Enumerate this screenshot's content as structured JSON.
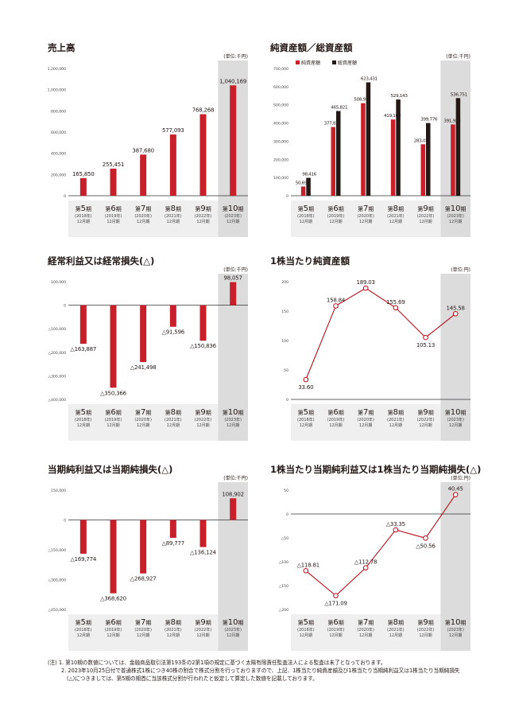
{
  "charts": [
    {
      "id": "sales",
      "title": "売上高",
      "unit": "(単位:千円)",
      "chart_data": {
        "type": "bar",
        "categories": [
          "第5期",
          "第6期",
          "第7期",
          "第8期",
          "第9期",
          "第10期"
        ],
        "category_years": [
          "(2018年)",
          "(2019年)",
          "(2020年)",
          "(2021年)",
          "(2022年)",
          "(2023年)"
        ],
        "category_month": "12月期",
        "series": [
          {
            "values": [
              165850,
              255451,
              387680,
              577093,
              768268,
              1040169
            ]
          }
        ],
        "value_labels": [
          "165,850",
          "255,451",
          "387,680",
          "577,093",
          "768,268",
          "1,040,169"
        ],
        "ylim": [
          0,
          1200000
        ],
        "yticks": [
          0,
          200000,
          400000,
          600000,
          800000,
          1000000,
          1200000
        ],
        "ytick_labels": [
          "0",
          "200,000",
          "400,000",
          "600,000",
          "800,000",
          "1,000,000",
          "1,200,000"
        ],
        "highlight_last": true
      }
    },
    {
      "id": "assets",
      "title": "純資産額／総資産額",
      "unit": "(単位:千円)",
      "chart_data": {
        "type": "bar",
        "categories": [
          "第5期",
          "第6期",
          "第7期",
          "第8期",
          "第9期",
          "第10期"
        ],
        "category_years": [
          "(2018年)",
          "(2019年)",
          "(2020年)",
          "(2021年)",
          "(2022年)",
          "(2023年)"
        ],
        "category_month": "12月期",
        "series": [
          {
            "name": "純資産額",
            "values": [
              50697,
              377821,
              508937,
              419160,
              283035,
              391938
            ],
            "labels": [
              "50,697",
              "377,821",
              "508,937",
              "419,160",
              "283,035",
              "391,938"
            ]
          },
          {
            "name": "総資産額",
            "values": [
              98416,
              465821,
              623431,
              529143,
              399776,
              536751
            ],
            "labels": [
              "98,416",
              "465,821",
              "623,431",
              "529,143",
              "399,776",
              "536,751"
            ]
          }
        ],
        "ylim": [
          0,
          700000
        ],
        "yticks": [
          0,
          100000,
          200000,
          300000,
          400000,
          500000,
          600000,
          700000
        ],
        "ytick_labels": [
          "0",
          "100,000",
          "200,000",
          "300,000",
          "400,000",
          "500,000",
          "600,000",
          "700,000"
        ],
        "legend": "top-left",
        "highlight_last": true
      }
    },
    {
      "id": "ordinary",
      "title": "経常利益又は経常損失(△)",
      "unit": "(単位:千円)",
      "chart_data": {
        "type": "bar",
        "categories": [
          "第5期",
          "第6期",
          "第7期",
          "第8期",
          "第9期",
          "第10期"
        ],
        "category_years": [
          "(2018年)",
          "(2019年)",
          "(2020年)",
          "(2021年)",
          "(2022年)",
          "(2023年)"
        ],
        "category_month": "12月期",
        "series": [
          {
            "values": [
              -163887,
              -350366,
              -241498,
              -91596,
              -150836,
              98057
            ]
          }
        ],
        "value_labels": [
          "△163,887",
          "△350,366",
          "△241,498",
          "△91,596",
          "△150,836",
          "98,057"
        ],
        "ylim": [
          -400000,
          100000
        ],
        "yticks": [
          100000,
          0,
          -100000,
          -200000,
          -300000,
          -400000
        ],
        "ytick_labels": [
          "100,000",
          "0",
          "△100,000",
          "△200,000",
          "△300,000",
          "△400,000"
        ],
        "highlight_last": true
      }
    },
    {
      "id": "bps",
      "title": "1株当たり純資産額",
      "unit": "(単位:円)",
      "chart_data": {
        "type": "line",
        "categories": [
          "第5期",
          "第6期",
          "第7期",
          "第8期",
          "第9期",
          "第10期"
        ],
        "category_years": [
          "(2018年)",
          "(2019年)",
          "(2020年)",
          "(2021年)",
          "(2022年)",
          "(2023年)"
        ],
        "category_month": "12月期",
        "series": [
          {
            "values": [
              33.6,
              158.84,
              189.03,
              155.69,
              105.13,
              145.58
            ]
          }
        ],
        "value_labels": [
          "33.60",
          "158.84",
          "189.03",
          "155.69",
          "105.13",
          "145.58"
        ],
        "ylim": [
          0,
          200
        ],
        "yticks": [
          0,
          50,
          100,
          150,
          200
        ],
        "ytick_labels": [
          "0",
          "50",
          "100",
          "150",
          "200"
        ],
        "highlight_last": true
      }
    },
    {
      "id": "net",
      "title": "当期純利益又は当期純損失(△)",
      "unit": "(単位:千円)",
      "chart_data": {
        "type": "bar",
        "categories": [
          "第5期",
          "第6期",
          "第7期",
          "第8期",
          "第9期",
          "第10期"
        ],
        "category_years": [
          "(2018年)",
          "(2019年)",
          "(2020年)",
          "(2021年)",
          "(2022年)",
          "(2023年)"
        ],
        "category_month": "12月期",
        "series": [
          {
            "values": [
              -169774,
              -368620,
              -268927,
              -89777,
              -136124,
              108902
            ]
          }
        ],
        "value_labels": [
          "△169,774",
          "△368,620",
          "△268,927",
          "△89,777",
          "△136,124",
          "108,902"
        ],
        "ylim": [
          -450000,
          150000
        ],
        "yticks": [
          150000,
          0,
          -150000,
          -300000,
          -450000
        ],
        "ytick_labels": [
          "150,000",
          "0",
          "△150,000",
          "△300,000",
          "△450,000"
        ],
        "highlight_last": true
      }
    },
    {
      "id": "eps",
      "title": "1株当たり当期純利益又は1株当たり当期純損失(△)",
      "unit": "(単位:円)",
      "chart_data": {
        "type": "line",
        "categories": [
          "第5期",
          "第6期",
          "第7期",
          "第8期",
          "第9期",
          "第10期"
        ],
        "category_years": [
          "(2018年)",
          "(2019年)",
          "(2020年)",
          "(2021年)",
          "(2022年)",
          "(2023年)"
        ],
        "category_month": "12月期",
        "series": [
          {
            "values": [
              -118.81,
              -171.09,
              -112.78,
              -33.35,
              -50.56,
              40.45
            ]
          }
        ],
        "value_labels": [
          "△118.81",
          "△171.09",
          "△112.78",
          "△33.35",
          "△50.56",
          "40.45"
        ],
        "ylim": [
          -200,
          50
        ],
        "yticks": [
          50,
          0,
          -50,
          -100,
          -150,
          -200
        ],
        "ytick_labels": [
          "50",
          "0",
          "△50",
          "△100",
          "△150",
          "△200"
        ],
        "highlight_last": true
      }
    }
  ],
  "notes": {
    "line1": "(注) 1. 第10期の数値については、金融商品取引法第193条の2第1項の規定に基づく太陽有限責任監査法人による監査は未了となっております。",
    "line2": "2. 2023年10月25日付で普通株式1株につき40株の割合で株式分割を行っておりますので、上記、1株当たり純資産額及び1株当たり当期純利益又は1株当たり当期純損失",
    "line3": "(△)につきましては、第5期の期首に当該株式分割が行われたと仮定して算定した数値を記載しております。"
  },
  "colors": {
    "bar_primary": "#c8202b",
    "bar_dark": "#231815",
    "line": "#b5121b",
    "highlight_bg": "#dcdcdd",
    "axis_band": "#efefef"
  }
}
